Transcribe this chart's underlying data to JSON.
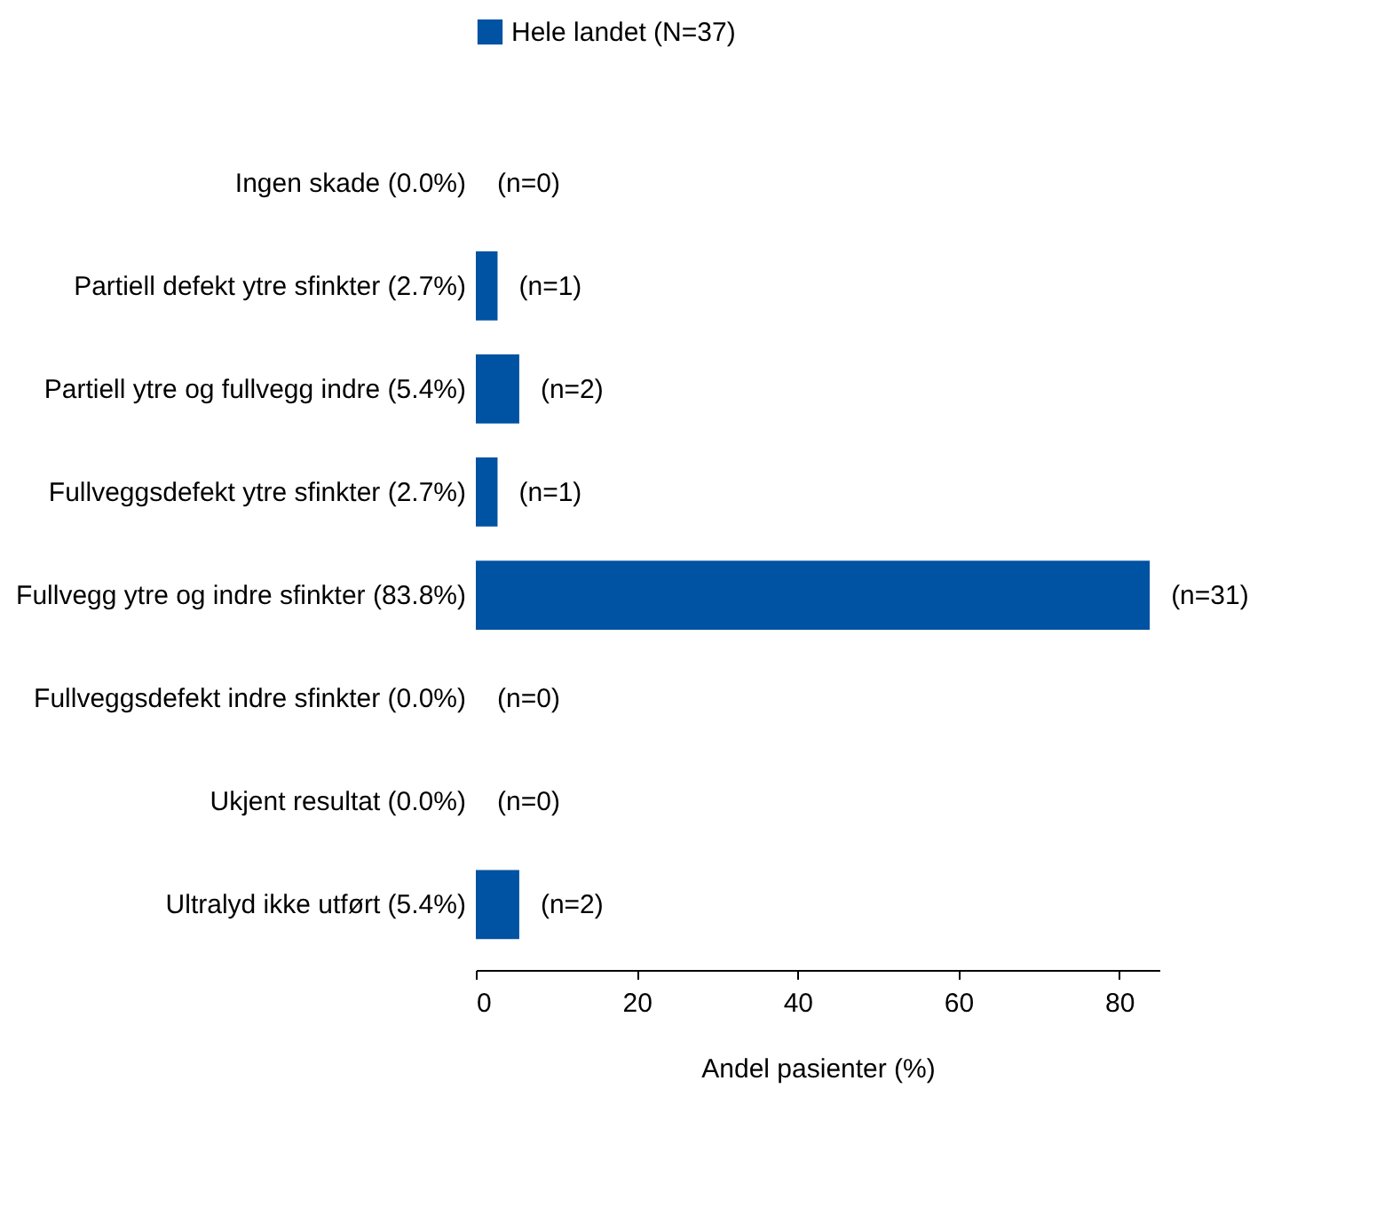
{
  "chart_data": {
    "type": "bar",
    "orientation": "horizontal",
    "xlabel": "Andel pasienter (%)",
    "categories": [
      "Ingen skade (0.0%)",
      "Partiell defekt ytre sfinkter (2.7%)",
      "Partiell ytre og fullvegg indre (5.4%)",
      "Fullveggsdefekt ytre sfinkter (2.7%)",
      "Fullvegg ytre og indre sfinkter (83.8%)",
      "Fullveggsdefekt indre sfinkter (0.0%)",
      "Ukjent resultat (0.0%)",
      "Ultralyd ikke utført (5.4%)"
    ],
    "series": [
      {
        "name": "Hele landet (N=37)",
        "color": "#0052a3",
        "values": [
          0,
          2.7,
          5.4,
          2.7,
          83.8,
          0,
          0,
          5.4
        ]
      }
    ],
    "annotations": [
      {
        "text": "(n=0)",
        "x": 0,
        "y": "Ingen skade (0.0%)"
      },
      {
        "text": "(n=1)",
        "x": 2.7,
        "y": "Partiell defekt ytre sfinkter (2.7%)"
      },
      {
        "text": "(n=2)",
        "x": 5.4,
        "y": "Partiell ytre og fullvegg indre (5.4%)"
      },
      {
        "text": "(n=1)",
        "x": 2.7,
        "y": "Fullveggsdefekt ytre sfinkter (2.7%)"
      },
      {
        "text": "(n=31)",
        "x": 83.8,
        "y": "Fullvegg ytre og indre sfinkter (83.8%)"
      },
      {
        "text": "(n=0)",
        "x": 0,
        "y": "Fullveggsdefekt indre sfinkter (0.0%)"
      },
      {
        "text": "(n=0)",
        "x": 0,
        "y": "Ukjent resultat (0.0%)"
      },
      {
        "text": "(n=2)",
        "x": 5.4,
        "y": "Ultralyd ikke utført (5.4%)"
      }
    ],
    "xlim": [
      0,
      85
    ],
    "xticks": [
      0,
      20,
      40,
      60,
      80
    ],
    "legend": "top"
  }
}
